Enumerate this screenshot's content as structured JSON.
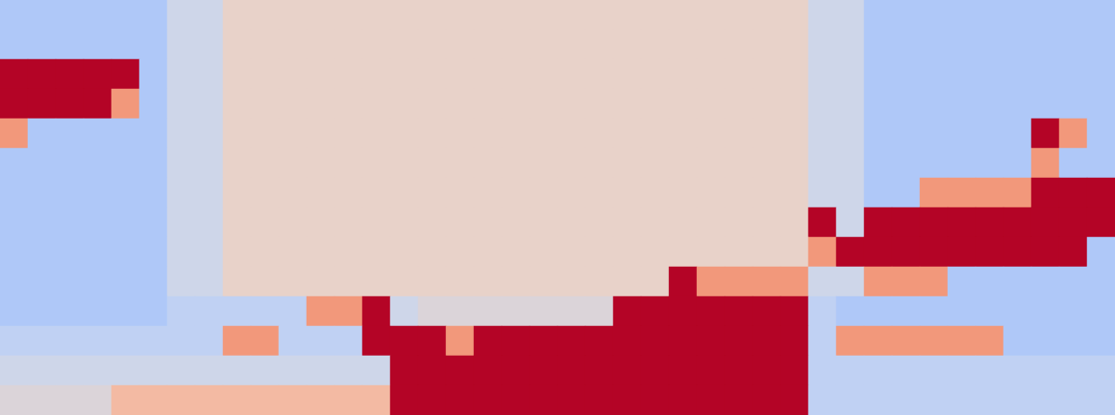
{
  "chart_data": {
    "type": "heatmap",
    "tick_labels": false,
    "zlim": [
      0,
      1
    ],
    "cells": [
      [
        0.35,
        0.35,
        0.35,
        0.35,
        0.35,
        0.35,
        0.45,
        0.45,
        0.55,
        0.55,
        0.55,
        0.55,
        0.55,
        0.55,
        0.55,
        0.55,
        0.55,
        0.55,
        0.55,
        0.55,
        0.55,
        0.55,
        0.55,
        0.55,
        0.55,
        0.55,
        0.55,
        0.55,
        0.55,
        0.45,
        0.45,
        0.35,
        0.35,
        0.35,
        0.35,
        0.35,
        0.35,
        0.35,
        0.35,
        0.35
      ],
      [
        0.35,
        0.35,
        0.35,
        0.35,
        0.35,
        0.35,
        0.45,
        0.45,
        0.55,
        0.55,
        0.55,
        0.55,
        0.55,
        0.55,
        0.55,
        0.55,
        0.55,
        0.55,
        0.55,
        0.55,
        0.55,
        0.55,
        0.55,
        0.55,
        0.55,
        0.55,
        0.55,
        0.55,
        0.55,
        0.45,
        0.45,
        0.35,
        0.35,
        0.35,
        0.35,
        0.35,
        0.35,
        0.35,
        0.35,
        0.35
      ],
      [
        1,
        1,
        1,
        1,
        1,
        0.35,
        0.45,
        0.45,
        0.55,
        0.55,
        0.55,
        0.55,
        0.55,
        0.55,
        0.55,
        0.55,
        0.55,
        0.55,
        0.55,
        0.55,
        0.55,
        0.55,
        0.55,
        0.55,
        0.55,
        0.55,
        0.55,
        0.55,
        0.55,
        0.45,
        0.45,
        0.35,
        0.35,
        0.35,
        0.35,
        0.35,
        0.35,
        0.35,
        0.35,
        0.35
      ],
      [
        1,
        1,
        1,
        1,
        0.75,
        0.35,
        0.45,
        0.45,
        0.55,
        0.55,
        0.55,
        0.55,
        0.55,
        0.55,
        0.55,
        0.55,
        0.55,
        0.55,
        0.55,
        0.55,
        0.55,
        0.55,
        0.55,
        0.55,
        0.55,
        0.55,
        0.55,
        0.55,
        0.55,
        0.45,
        0.45,
        0.35,
        0.35,
        0.35,
        0.35,
        0.35,
        0.35,
        0.35,
        0.35,
        0.35
      ],
      [
        0.75,
        0.35,
        0.35,
        0.35,
        0.35,
        0.35,
        0.45,
        0.45,
        0.55,
        0.55,
        0.55,
        0.55,
        0.55,
        0.55,
        0.55,
        0.55,
        0.55,
        0.55,
        0.55,
        0.55,
        0.55,
        0.55,
        0.55,
        0.55,
        0.55,
        0.55,
        0.55,
        0.55,
        0.55,
        0.45,
        0.45,
        0.35,
        0.35,
        0.35,
        0.35,
        0.35,
        0.35,
        1,
        0.75,
        0.35
      ],
      [
        0.35,
        0.35,
        0.35,
        0.35,
        0.35,
        0.35,
        0.45,
        0.45,
        0.55,
        0.55,
        0.55,
        0.55,
        0.55,
        0.55,
        0.55,
        0.55,
        0.55,
        0.55,
        0.55,
        0.55,
        0.55,
        0.55,
        0.55,
        0.55,
        0.55,
        0.55,
        0.55,
        0.55,
        0.55,
        0.45,
        0.45,
        0.35,
        0.35,
        0.35,
        0.35,
        0.35,
        0.35,
        0.75,
        0.35,
        0.35
      ],
      [
        0.35,
        0.35,
        0.35,
        0.35,
        0.35,
        0.35,
        0.45,
        0.45,
        0.55,
        0.55,
        0.55,
        0.55,
        0.55,
        0.55,
        0.55,
        0.55,
        0.55,
        0.55,
        0.55,
        0.55,
        0.55,
        0.55,
        0.55,
        0.55,
        0.55,
        0.55,
        0.55,
        0.55,
        0.55,
        0.45,
        0.45,
        0.35,
        0.35,
        0.75,
        0.75,
        0.75,
        0.75,
        1,
        1,
        1
      ],
      [
        0.35,
        0.35,
        0.35,
        0.35,
        0.35,
        0.35,
        0.45,
        0.45,
        0.55,
        0.55,
        0.55,
        0.55,
        0.55,
        0.55,
        0.55,
        0.55,
        0.55,
        0.55,
        0.55,
        0.55,
        0.55,
        0.55,
        0.55,
        0.55,
        0.55,
        0.55,
        0.55,
        0.55,
        0.55,
        1,
        0.45,
        1,
        1,
        1,
        1,
        1,
        1,
        1,
        1,
        1
      ],
      [
        0.35,
        0.35,
        0.35,
        0.35,
        0.35,
        0.35,
        0.45,
        0.45,
        0.55,
        0.55,
        0.55,
        0.55,
        0.55,
        0.55,
        0.55,
        0.55,
        0.55,
        0.55,
        0.55,
        0.55,
        0.55,
        0.55,
        0.55,
        0.55,
        0.55,
        0.55,
        0.55,
        0.55,
        0.55,
        0.75,
        1,
        1,
        1,
        1,
        1,
        1,
        1,
        1,
        1,
        0.35
      ],
      [
        0.35,
        0.35,
        0.35,
        0.35,
        0.35,
        0.35,
        0.45,
        0.45,
        0.55,
        0.55,
        0.55,
        0.55,
        0.55,
        0.55,
        0.55,
        0.55,
        0.55,
        0.55,
        0.55,
        0.55,
        0.55,
        0.55,
        0.55,
        0.55,
        1,
        0.75,
        0.75,
        0.75,
        0.75,
        0.45,
        0.45,
        0.75,
        0.75,
        0.75,
        0.35,
        0.35,
        0.35,
        0.35,
        0.35,
        0.35
      ],
      [
        0.35,
        0.35,
        0.35,
        0.35,
        0.35,
        0.35,
        0.4,
        0.4,
        0.4,
        0.4,
        0.4,
        0.75,
        0.75,
        1,
        0.45,
        0.5,
        0.5,
        0.5,
        0.5,
        0.5,
        0.5,
        0.5,
        1,
        1,
        1,
        1,
        1,
        1,
        1,
        0.4,
        0.35,
        0.35,
        0.35,
        0.35,
        0.35,
        0.35,
        0.35,
        0.35,
        0.35,
        0.35
      ],
      [
        0.4,
        0.4,
        0.4,
        0.4,
        0.4,
        0.4,
        0.4,
        0.4,
        0.75,
        0.75,
        0.4,
        0.4,
        0.4,
        1,
        1,
        1,
        0.75,
        1,
        1,
        1,
        1,
        1,
        1,
        1,
        1,
        1,
        1,
        1,
        1,
        0.4,
        0.75,
        0.75,
        0.75,
        0.75,
        0.75,
        0.75,
        0.35,
        0.35,
        0.35,
        0.35
      ],
      [
        0.45,
        0.45,
        0.45,
        0.45,
        0.45,
        0.45,
        0.45,
        0.45,
        0.45,
        0.45,
        0.45,
        0.45,
        0.45,
        0.45,
        1,
        1,
        1,
        1,
        1,
        1,
        1,
        1,
        1,
        1,
        1,
        1,
        1,
        1,
        1,
        0.4,
        0.4,
        0.4,
        0.4,
        0.4,
        0.4,
        0.4,
        0.4,
        0.4,
        0.4,
        0.4
      ],
      [
        0.5,
        0.5,
        0.5,
        0.5,
        0.65,
        0.65,
        0.65,
        0.65,
        0.65,
        0.65,
        0.65,
        0.65,
        0.65,
        0.65,
        1,
        1,
        1,
        1,
        1,
        1,
        1,
        1,
        1,
        1,
        1,
        1,
        1,
        1,
        1,
        0.4,
        0.4,
        0.4,
        0.4,
        0.4,
        0.4,
        0.4,
        0.4,
        0.4,
        0.4,
        0.4
      ]
    ]
  }
}
